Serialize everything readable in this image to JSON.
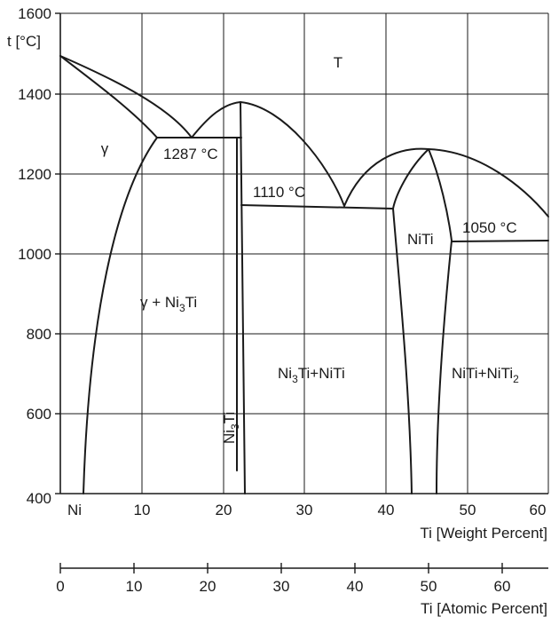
{
  "diagram": {
    "y_axis": {
      "label": "t [°C]",
      "ticks": [
        "1600",
        "1400",
        "1200",
        "1000",
        "800",
        "600",
        "400"
      ]
    },
    "x_axis_weight": {
      "label": "Ti [Weight Percent]",
      "origin_label": "Ni",
      "ticks": [
        "10",
        "20",
        "30",
        "40",
        "50",
        "60"
      ]
    },
    "x_axis_atomic": {
      "label": "Ti [Atomic Percent]",
      "ticks": [
        "0",
        "10",
        "20",
        "30",
        "40",
        "50",
        "60"
      ]
    },
    "regions": {
      "liquid": "T",
      "gamma": "γ",
      "gamma_ni3ti_prefix": "γ + Ni",
      "gamma_ni3ti_sub": "3",
      "gamma_ni3ti_suffix": "Ti",
      "ni3ti_niti_a": "Ni",
      "ni3ti_niti_sub": "3",
      "ni3ti_niti_b": "Ti+NiTi",
      "ni3ti_a": "Ni",
      "ni3ti_sub": "3",
      "ni3ti_b": "Ti",
      "niti": "NiTi",
      "niti_niti2_a": "NiTi+NiTi",
      "niti_niti2_sub": "2"
    },
    "temperatures": {
      "t1287": "1287 °C",
      "t1110": "1110 °C",
      "t1050": "1050 °C"
    }
  }
}
